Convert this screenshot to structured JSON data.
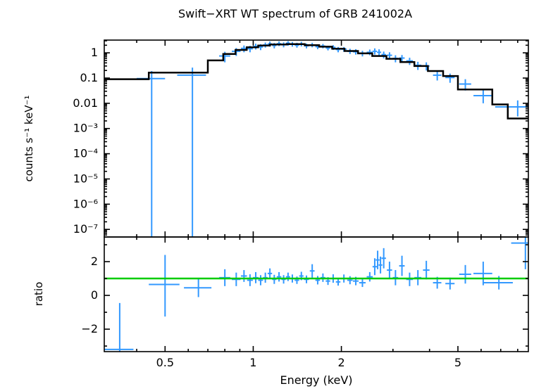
{
  "chart": {
    "title": "Swift−XRT WT spectrum of GRB 241002A",
    "xlabel": "Energy (keV)",
    "colors": {
      "data": "#3399ff",
      "model": "#000000",
      "reference": "#00cc00",
      "axis": "#000000",
      "background": "#ffffff"
    }
  },
  "chart_data": [
    {
      "type": "scatter",
      "name": "spectrum",
      "ylabel": "counts s⁻¹ keV⁻¹",
      "xscale": "log",
      "yscale": "log",
      "xlim": [
        0.31,
        8.7
      ],
      "ylim": [
        5e-08,
        3.2
      ],
      "xticks": [
        0.5,
        1,
        2,
        5
      ],
      "xtick_labels": [
        "0.5",
        "1",
        "2",
        "5"
      ],
      "xticks_minor": [
        0.4,
        0.6,
        0.7,
        0.8,
        0.9,
        3,
        4,
        6,
        7,
        8
      ],
      "yticks": [
        1,
        0.1,
        0.01,
        0.001,
        0.0001,
        1e-05,
        1e-06,
        1e-07
      ],
      "ytick_labels": [
        "1",
        "0.1",
        "0.01",
        "10⁻³",
        "10⁻⁴",
        "10⁻⁵",
        "10⁻⁶",
        "10⁻⁷"
      ],
      "points_format": [
        "x",
        "xerr",
        "y",
        "ylo",
        "yhi"
      ],
      "points": [
        [
          0.45,
          0.05,
          0.095,
          1e-08,
          0.19
        ],
        [
          0.62,
          0.07,
          0.13,
          1e-08,
          0.26
        ],
        [
          0.8,
          0.035,
          0.75,
          0.42,
          1.1
        ],
        [
          0.875,
          0.03,
          1.15,
          0.75,
          1.55
        ],
        [
          0.93,
          0.022,
          1.5,
          1.05,
          1.95
        ],
        [
          0.975,
          0.022,
          1.45,
          1.05,
          1.9
        ],
        [
          1.02,
          0.022,
          1.8,
          1.35,
          2.3
        ],
        [
          1.06,
          0.02,
          1.7,
          1.28,
          2.2
        ],
        [
          1.1,
          0.02,
          2.05,
          1.6,
          2.55
        ],
        [
          1.14,
          0.02,
          2.25,
          1.75,
          2.8
        ],
        [
          1.18,
          0.02,
          1.95,
          1.5,
          2.45
        ],
        [
          1.225,
          0.022,
          2.3,
          1.85,
          2.85
        ],
        [
          1.27,
          0.022,
          2.1,
          1.65,
          2.6
        ],
        [
          1.315,
          0.022,
          2.4,
          1.9,
          2.9
        ],
        [
          1.36,
          0.022,
          2.2,
          1.75,
          2.7
        ],
        [
          1.41,
          0.025,
          2.0,
          1.6,
          2.5
        ],
        [
          1.46,
          0.025,
          2.25,
          1.8,
          2.75
        ],
        [
          1.52,
          0.03,
          1.9,
          1.5,
          2.35
        ],
        [
          1.59,
          0.03,
          2.05,
          1.65,
          2.5
        ],
        [
          1.66,
          0.03,
          1.75,
          1.4,
          2.15
        ],
        [
          1.73,
          0.032,
          1.85,
          1.5,
          2.25
        ],
        [
          1.8,
          0.032,
          1.55,
          1.25,
          1.9
        ],
        [
          1.875,
          0.035,
          1.65,
          1.3,
          2.0
        ],
        [
          1.95,
          0.035,
          1.35,
          1.05,
          1.7
        ],
        [
          2.04,
          0.045,
          1.4,
          1.1,
          1.7
        ],
        [
          2.14,
          0.045,
          1.15,
          0.9,
          1.45
        ],
        [
          2.24,
          0.05,
          1.1,
          0.85,
          1.4
        ],
        [
          2.36,
          0.06,
          0.95,
          0.72,
          1.2
        ],
        [
          2.5,
          0.06,
          1.05,
          0.8,
          1.35
        ],
        [
          2.6,
          0.045,
          1.15,
          0.85,
          1.5
        ],
        [
          2.69,
          0.045,
          1.05,
          0.78,
          1.38
        ],
        [
          2.79,
          0.05,
          0.85,
          0.6,
          1.12
        ],
        [
          2.92,
          0.06,
          0.8,
          0.58,
          1.05
        ],
        [
          3.06,
          0.065,
          0.6,
          0.42,
          0.8
        ],
        [
          3.22,
          0.07,
          0.62,
          0.44,
          0.82
        ],
        [
          3.42,
          0.09,
          0.48,
          0.33,
          0.64
        ],
        [
          3.65,
          0.1,
          0.32,
          0.21,
          0.44
        ],
        [
          3.9,
          0.1,
          0.3,
          0.2,
          0.42
        ],
        [
          4.25,
          0.14,
          0.13,
          0.08,
          0.19
        ],
        [
          4.7,
          0.17,
          0.105,
          0.065,
          0.15
        ],
        [
          5.3,
          0.25,
          0.058,
          0.032,
          0.09
        ],
        [
          6.1,
          0.45,
          0.02,
          0.01,
          0.033
        ],
        [
          8.0,
          1.3,
          0.0072,
          0.003,
          0.013
        ]
      ],
      "model_steps_format": [
        "x1",
        "x2",
        "y"
      ],
      "model_steps": [
        [
          0.31,
          0.44,
          0.09
        ],
        [
          0.44,
          0.7,
          0.165
        ],
        [
          0.7,
          0.79,
          0.5
        ],
        [
          0.79,
          0.87,
          0.9
        ],
        [
          0.87,
          0.95,
          1.3
        ],
        [
          0.95,
          1.04,
          1.65
        ],
        [
          1.04,
          1.14,
          1.95
        ],
        [
          1.14,
          1.3,
          2.15
        ],
        [
          1.3,
          1.5,
          2.2
        ],
        [
          1.5,
          1.68,
          2.0
        ],
        [
          1.68,
          1.86,
          1.75
        ],
        [
          1.86,
          2.05,
          1.45
        ],
        [
          2.05,
          2.28,
          1.18
        ],
        [
          2.28,
          2.55,
          0.95
        ],
        [
          2.55,
          2.85,
          0.75
        ],
        [
          2.85,
          3.18,
          0.58
        ],
        [
          3.18,
          3.55,
          0.43
        ],
        [
          3.55,
          3.95,
          0.3
        ],
        [
          3.95,
          4.45,
          0.19
        ],
        [
          4.45,
          5.0,
          0.12
        ],
        [
          5.0,
          6.55,
          0.035
        ],
        [
          6.55,
          7.4,
          0.009
        ],
        [
          7.4,
          8.7,
          0.0025
        ]
      ]
    },
    {
      "type": "scatter",
      "name": "ratio",
      "ylabel": "ratio",
      "xscale": "log",
      "yscale": "linear",
      "xlim": [
        0.31,
        8.7
      ],
      "ylim": [
        -3.33,
        3.46
      ],
      "yticks": [
        -2,
        0,
        2
      ],
      "ytick_labels": [
        "−2",
        "0",
        "2"
      ],
      "yticks_minor": [
        -3,
        -1,
        1,
        3
      ],
      "reference_line_y": 1,
      "points_format": [
        "x",
        "xerr",
        "y",
        "ylo",
        "yhi"
      ],
      "points": [
        [
          0.35,
          0.04,
          -3.2,
          -5.0,
          -0.45
        ],
        [
          0.5,
          0.06,
          0.65,
          -1.25,
          2.4
        ],
        [
          0.65,
          0.07,
          0.45,
          -0.1,
          1.0
        ],
        [
          0.8,
          0.035,
          1.05,
          0.55,
          1.55
        ],
        [
          0.875,
          0.03,
          0.95,
          0.55,
          1.35
        ],
        [
          0.93,
          0.022,
          1.15,
          0.8,
          1.5
        ],
        [
          0.975,
          0.022,
          0.9,
          0.55,
          1.25
        ],
        [
          1.02,
          0.022,
          1.05,
          0.72,
          1.38
        ],
        [
          1.06,
          0.02,
          0.9,
          0.6,
          1.2
        ],
        [
          1.1,
          0.02,
          1.05,
          0.75,
          1.35
        ],
        [
          1.14,
          0.02,
          1.3,
          1.0,
          1.6
        ],
        [
          1.18,
          0.02,
          0.95,
          0.68,
          1.22
        ],
        [
          1.225,
          0.022,
          1.1,
          0.82,
          1.38
        ],
        [
          1.27,
          0.022,
          0.95,
          0.7,
          1.2
        ],
        [
          1.315,
          0.022,
          1.1,
          0.85,
          1.35
        ],
        [
          1.36,
          0.022,
          1.0,
          0.76,
          1.24
        ],
        [
          1.41,
          0.025,
          0.9,
          0.68,
          1.12
        ],
        [
          1.46,
          0.025,
          1.15,
          0.9,
          1.4
        ],
        [
          1.52,
          0.03,
          0.95,
          0.72,
          1.18
        ],
        [
          1.59,
          0.03,
          1.45,
          1.05,
          1.85
        ],
        [
          1.66,
          0.03,
          0.9,
          0.65,
          1.15
        ],
        [
          1.73,
          0.032,
          1.05,
          0.8,
          1.3
        ],
        [
          1.8,
          0.032,
          0.85,
          0.62,
          1.08
        ],
        [
          1.875,
          0.035,
          1.0,
          0.75,
          1.25
        ],
        [
          1.95,
          0.035,
          0.8,
          0.58,
          1.02
        ],
        [
          2.04,
          0.045,
          1.0,
          0.76,
          1.24
        ],
        [
          2.14,
          0.045,
          0.9,
          0.66,
          1.14
        ],
        [
          2.24,
          0.05,
          0.85,
          0.6,
          1.1
        ],
        [
          2.36,
          0.06,
          0.75,
          0.5,
          1.0
        ],
        [
          2.5,
          0.06,
          1.1,
          0.82,
          1.38
        ],
        [
          2.6,
          0.045,
          1.7,
          1.2,
          2.2
        ],
        [
          2.66,
          0.04,
          2.1,
          1.55,
          2.65
        ],
        [
          2.72,
          0.04,
          1.8,
          1.3,
          2.3
        ],
        [
          2.79,
          0.05,
          2.2,
          1.6,
          2.8
        ],
        [
          2.92,
          0.06,
          1.5,
          1.0,
          2.0
        ],
        [
          3.06,
          0.065,
          1.05,
          0.6,
          1.5
        ],
        [
          3.22,
          0.07,
          1.75,
          1.15,
          2.35
        ],
        [
          3.42,
          0.09,
          0.95,
          0.55,
          1.35
        ],
        [
          3.65,
          0.1,
          1.05,
          0.6,
          1.5
        ],
        [
          3.9,
          0.1,
          1.5,
          0.95,
          2.05
        ],
        [
          4.25,
          0.14,
          0.75,
          0.4,
          1.1
        ],
        [
          4.7,
          0.17,
          0.7,
          0.35,
          1.05
        ],
        [
          5.3,
          0.25,
          1.25,
          0.7,
          1.8
        ],
        [
          6.1,
          0.45,
          1.3,
          0.6,
          2.0
        ],
        [
          6.9,
          0.8,
          0.75,
          0.35,
          1.15
        ],
        [
          8.5,
          0.9,
          3.1,
          1.55,
          5.0
        ]
      ]
    }
  ]
}
